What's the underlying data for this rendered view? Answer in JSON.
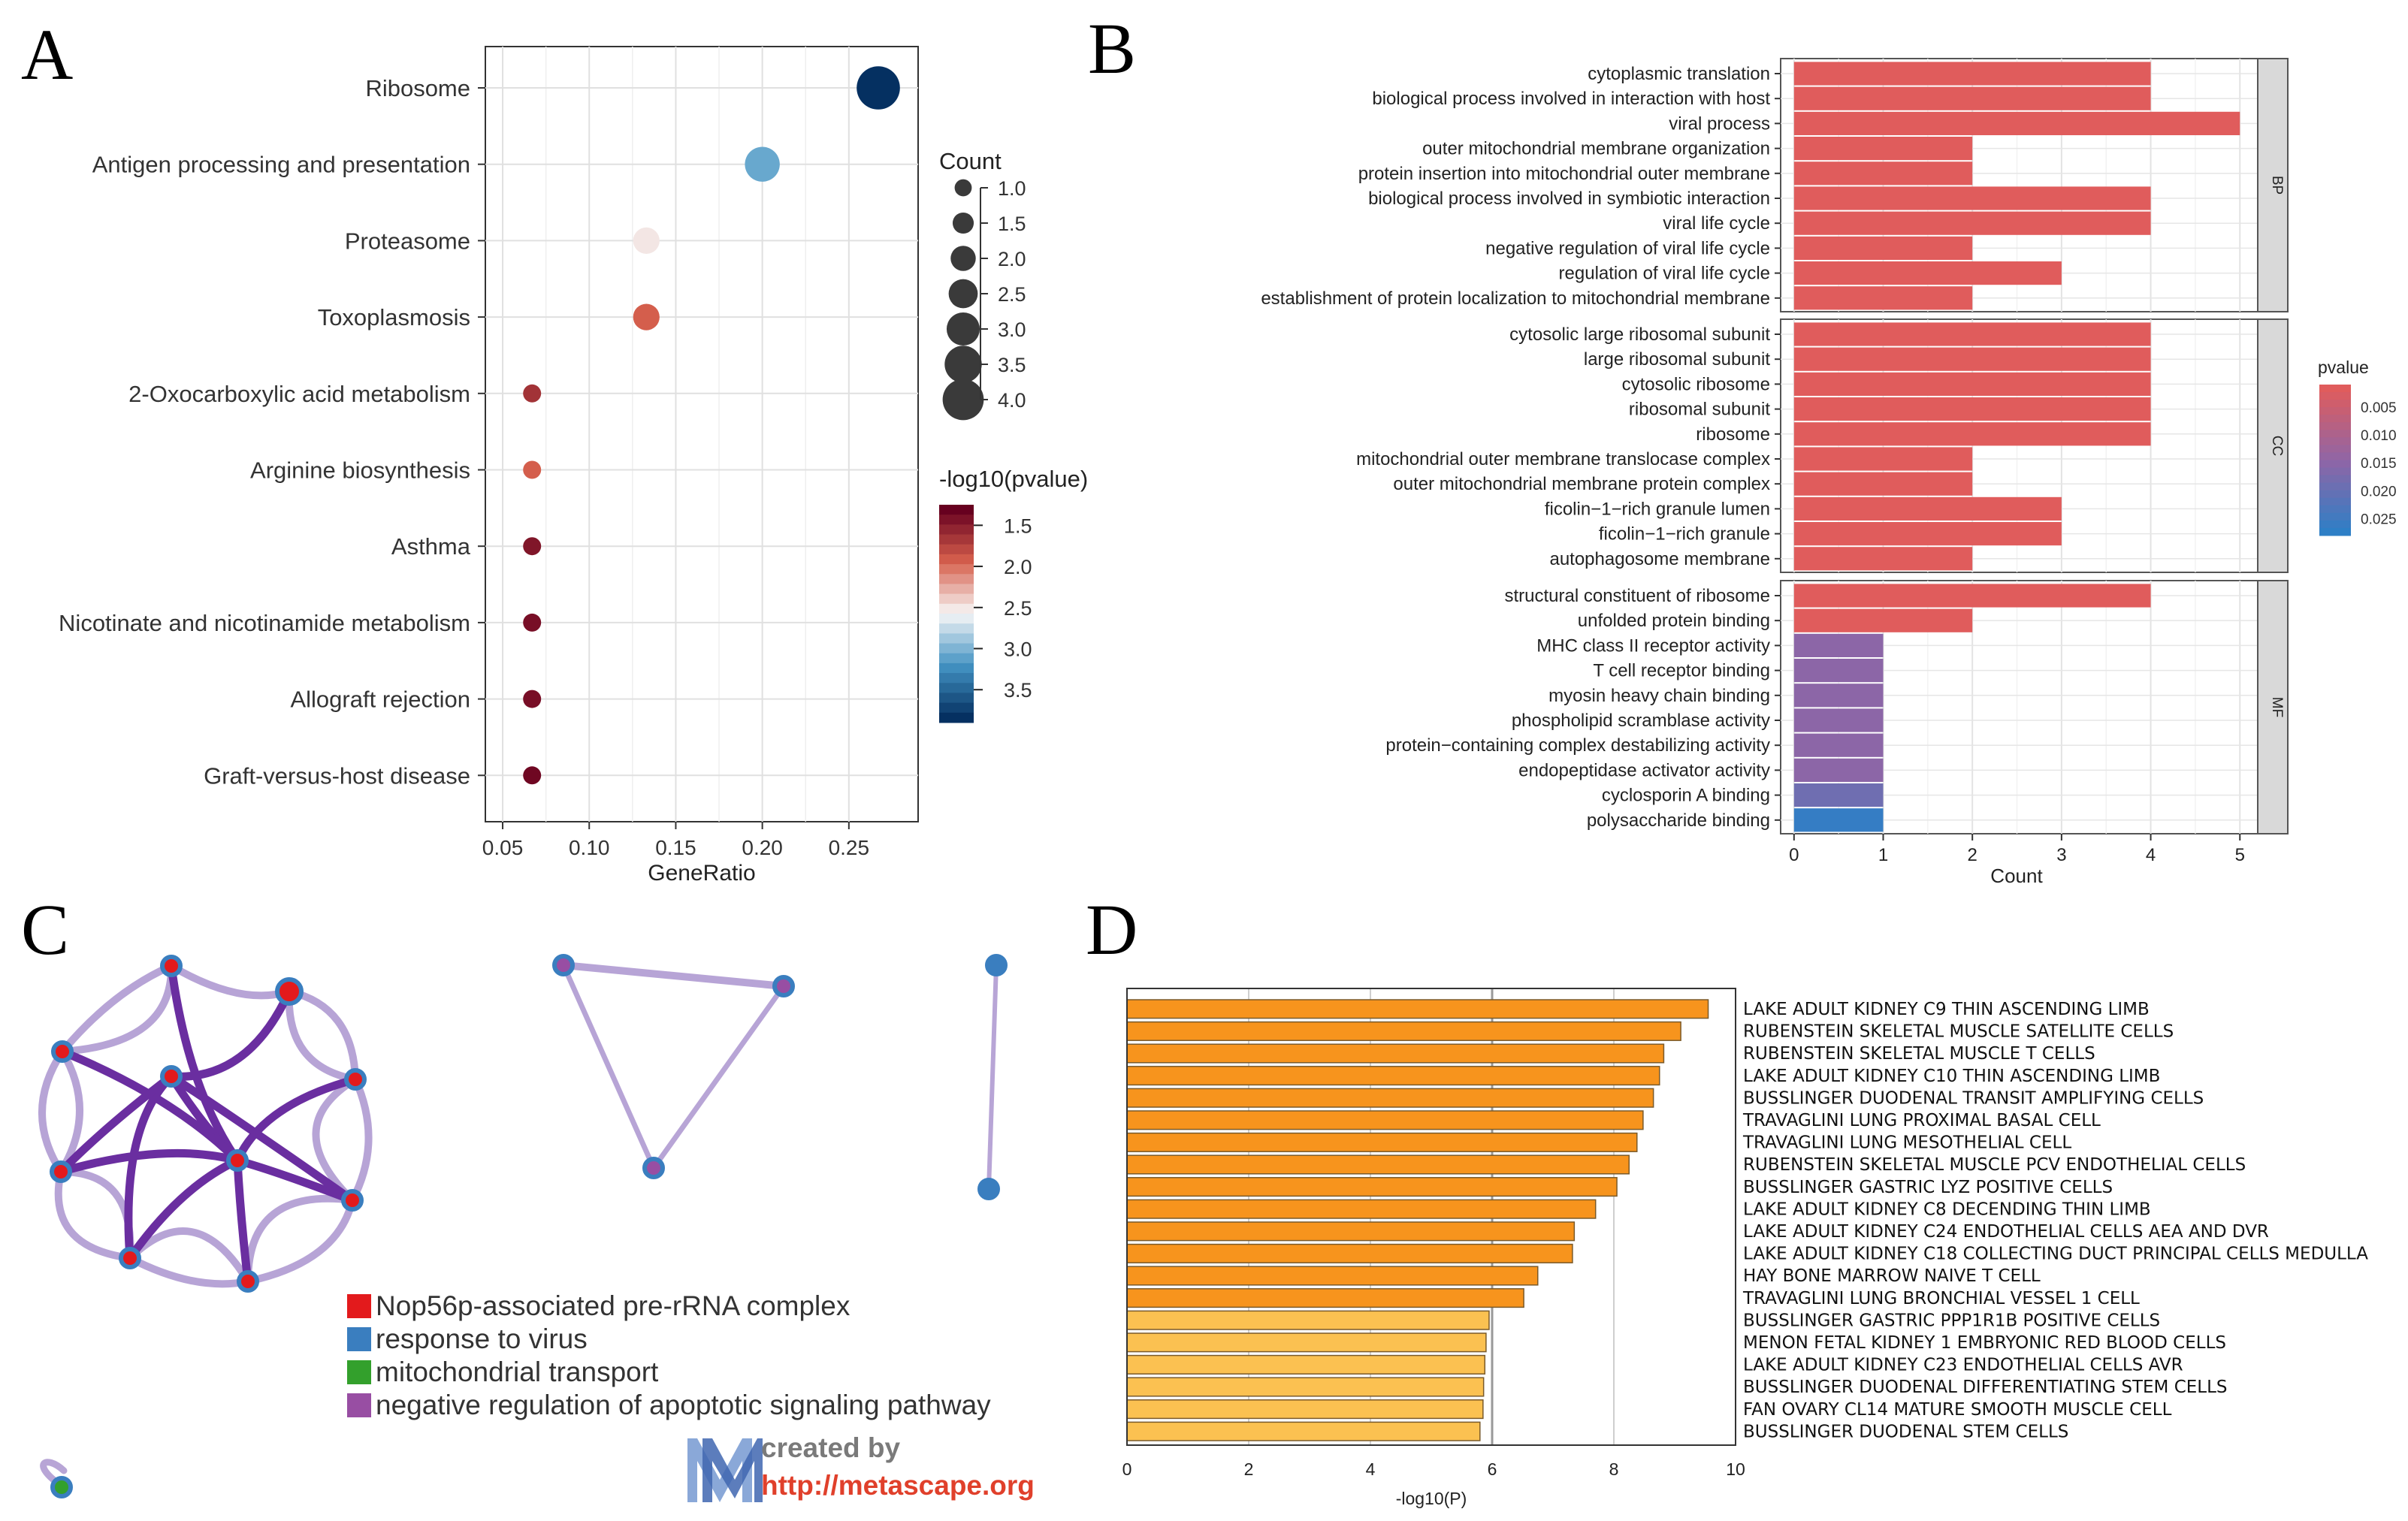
{
  "panel_labels": [
    "A",
    "B",
    "C",
    "D"
  ],
  "chart_data": [
    {
      "panel": "A",
      "type": "scatter",
      "title": "",
      "xlabel": "GeneRatio",
      "ylabel": "",
      "xlim": [
        0.04,
        0.29
      ],
      "xticks": [
        0.05,
        0.1,
        0.15,
        0.2,
        0.25
      ],
      "xtick_labels": [
        "0.05",
        "0.10",
        "0.15",
        "0.20",
        "0.25"
      ],
      "grid": true,
      "categories": [
        "Ribosome",
        "Antigen processing and presentation",
        "Proteasome",
        "Toxoplasmosis",
        "2-Oxocarboxylic acid metabolism",
        "Arginine biosynthesis",
        "Asthma",
        "Nicotinate and nicotinamide metabolism",
        "Allograft rejection",
        "Graft-versus-host disease"
      ],
      "x": [
        0.267,
        0.2,
        0.133,
        0.133,
        0.067,
        0.067,
        0.067,
        0.067,
        0.067,
        0.067
      ],
      "count": [
        4,
        3,
        2,
        2,
        1,
        1,
        1,
        1,
        1,
        1
      ],
      "neglog10p": [
        3.9,
        3.1,
        2.5,
        1.9,
        1.6,
        1.9,
        1.4,
        1.35,
        1.35,
        1.3
      ],
      "size_legend": {
        "title": "Count",
        "values": [
          1.0,
          1.5,
          2.0,
          2.5,
          3.0,
          3.5,
          4.0
        ],
        "labels": [
          "1.0",
          "1.5",
          "2.0",
          "2.5",
          "3.0",
          "3.5",
          "4.0"
        ]
      },
      "color_legend": {
        "title": "-log10(pvalue)",
        "ticks": [
          1.5,
          2.0,
          2.5,
          3.0,
          3.5
        ],
        "labels": [
          "1.5",
          "2.0",
          "2.5",
          "3.0",
          "3.5"
        ],
        "range": [
          1.25,
          3.9
        ]
      }
    },
    {
      "panel": "B",
      "type": "bar",
      "orientation": "horizontal",
      "xlabel": "Count",
      "xlim": [
        -0.15,
        5.2
      ],
      "xticks": [
        0,
        1,
        2,
        3,
        4,
        5
      ],
      "xtick_labels": [
        "0",
        "1",
        "2",
        "3",
        "4",
        "5"
      ],
      "grid": true,
      "facets": [
        {
          "name": "BP",
          "categories": [
            "cytoplasmic translation",
            "biological process involved in interaction with host",
            "viral process",
            "outer mitochondrial membrane organization",
            "protein insertion into mitochondrial outer membrane",
            "biological process involved in symbiotic interaction",
            "viral life cycle",
            "negative regulation of viral life cycle",
            "regulation of viral life cycle",
            "establishment of protein localization to mitochondrial membrane"
          ],
          "values": [
            4,
            4,
            5,
            2,
            2,
            4,
            4,
            2,
            3,
            2
          ],
          "pvalue": [
            0.001,
            0.001,
            0.001,
            0.001,
            0.001,
            0.001,
            0.001,
            0.001,
            0.001,
            0.001
          ]
        },
        {
          "name": "CC",
          "categories": [
            "cytosolic large ribosomal subunit",
            "large ribosomal subunit",
            "cytosolic ribosome",
            "ribosomal subunit",
            "ribosome",
            "mitochondrial outer membrane translocase complex",
            "outer mitochondrial membrane protein complex",
            "ficolin−1−rich granule lumen",
            "ficolin−1−rich granule",
            "autophagosome membrane"
          ],
          "values": [
            4,
            4,
            4,
            4,
            4,
            2,
            2,
            3,
            3,
            2
          ],
          "pvalue": [
            0.001,
            0.001,
            0.001,
            0.001,
            0.001,
            0.001,
            0.001,
            0.001,
            0.001,
            0.001
          ]
        },
        {
          "name": "MF",
          "categories": [
            "structural constituent of ribosome",
            "unfolded protein binding",
            "MHC class II receptor activity",
            "T cell receptor binding",
            "myosin heavy chain binding",
            "phospholipid scramblase activity",
            "protein−containing complex destabilizing activity",
            "endopeptidase activator activity",
            "cyclosporin A binding",
            "polysaccharide binding"
          ],
          "values": [
            4,
            2,
            1,
            1,
            1,
            1,
            1,
            1,
            1,
            1
          ],
          "pvalue": [
            0.001,
            0.001,
            0.015,
            0.015,
            0.015,
            0.015,
            0.015,
            0.015,
            0.019,
            0.027
          ]
        }
      ],
      "color_legend": {
        "title": "pvalue",
        "ticks": [
          0.005,
          0.01,
          0.015,
          0.02,
          0.025
        ],
        "labels": [
          "0.005",
          "0.010",
          "0.015",
          "0.020",
          "0.025"
        ],
        "range": [
          0.001,
          0.028
        ]
      }
    },
    {
      "panel": "C",
      "type": "network",
      "legend": [
        {
          "label": "Nop56p-associated pre-rRNA complex",
          "color": "#e31a1c"
        },
        {
          "label": "response to virus",
          "color": "#3a7ebf"
        },
        {
          "label": "mitochondrial transport",
          "color": "#33a02c"
        },
        {
          "label": "negative regulation of apoptotic signaling pathway",
          "color": "#984ea3"
        }
      ],
      "logo": {
        "line1": "created by",
        "line2": "http://metascape.org"
      }
    },
    {
      "panel": "D",
      "type": "bar",
      "orientation": "horizontal",
      "xlabel": "-log10(P)",
      "xlim": [
        0,
        10
      ],
      "xticks": [
        0,
        2,
        4,
        6,
        8,
        10
      ],
      "xtick_labels": [
        "0",
        "2",
        "4",
        "6",
        "8",
        "10"
      ],
      "threshold_line": 6,
      "categories": [
        "LAKE ADULT KIDNEY C9 THIN ASCENDING LIMB",
        "RUBENSTEIN SKELETAL MUSCLE SATELLITE CELLS",
        "RUBENSTEIN SKELETAL MUSCLE T CELLS",
        "LAKE ADULT KIDNEY C10 THIN ASCENDING LIMB",
        "BUSSLINGER DUODENAL TRANSIT AMPLIFYING CELLS",
        "TRAVAGLINI LUNG PROXIMAL BASAL CELL",
        "TRAVAGLINI LUNG MESOTHELIAL CELL",
        "RUBENSTEIN SKELETAL MUSCLE PCV ENDOTHELIAL CELLS",
        "BUSSLINGER GASTRIC LYZ POSITIVE CELLS",
        "LAKE ADULT KIDNEY C8 DECENDING THIN LIMB",
        "LAKE ADULT KIDNEY C24 ENDOTHELIAL CELLS AEA AND DVR",
        "LAKE ADULT KIDNEY C18 COLLECTING DUCT PRINCIPAL CELLS MEDULLA",
        "HAY BONE MARROW NAIVE T CELL",
        "TRAVAGLINI LUNG BRONCHIAL VESSEL 1 CELL",
        "BUSSLINGER GASTRIC PPP1R1B POSITIVE CELLS",
        "MENON FETAL KIDNEY 1 EMBRYONIC RED BLOOD CELLS",
        "LAKE ADULT KIDNEY C23 ENDOTHELIAL CELLS AVR",
        "BUSSLINGER DUODENAL DIFFERENTIATING STEM CELLS",
        "FAN OVARY CL14 MATURE SMOOTH MUSCLE CELL",
        "BUSSLINGER DUODENAL STEM CELLS"
      ],
      "values": [
        9.55,
        9.1,
        8.82,
        8.75,
        8.65,
        8.48,
        8.38,
        8.25,
        8.05,
        7.7,
        7.35,
        7.32,
        6.75,
        6.52,
        5.95,
        5.9,
        5.88,
        5.86,
        5.85,
        5.8
      ],
      "colors": {
        "strong": "#f7941d",
        "weak": "#fbc151"
      }
    }
  ]
}
